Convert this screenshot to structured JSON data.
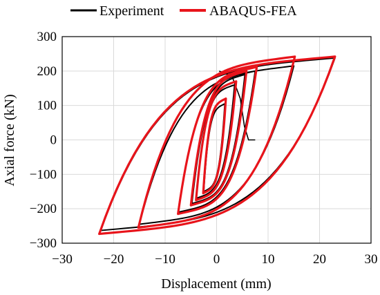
{
  "chart_data": {
    "type": "line",
    "xlabel": "Displacement (mm)",
    "ylabel": "Axial force (kN)",
    "xlim": [
      -30,
      30
    ],
    "ylim": [
      -300,
      300
    ],
    "xticks": [
      -30,
      -20,
      -10,
      0,
      10,
      20,
      30
    ],
    "yticks": [
      -300,
      -200,
      -100,
      0,
      100,
      200,
      300
    ],
    "xtick_labels": [
      "−30",
      "−20",
      "−10",
      "0",
      "10",
      "20",
      "30"
    ],
    "ytick_labels": [
      "−300",
      "−200",
      "−100",
      "0",
      "100",
      "200",
      "300"
    ],
    "grid": true,
    "legend_position": "top",
    "cycle_amplitudes_mm": [
      2,
      3,
      5,
      7,
      15,
      23
    ],
    "series": [
      {
        "name": "Experiment",
        "color": "#000000",
        "loops": [
          {
            "dmax": 1.6,
            "dmin": -2.5,
            "fmax": 105,
            "fmin": -150
          },
          {
            "dmax": 3.5,
            "dmin": -4.0,
            "fmax": 160,
            "fmin": -170
          },
          {
            "dmax": 5.5,
            "dmin": -4.8,
            "fmax": 190,
            "fmin": -185
          },
          {
            "dmax": 7.5,
            "dmin": -7.5,
            "fmax": 200,
            "fmin": -210
          },
          {
            "dmax": 15.0,
            "dmin": -15.0,
            "fmax": 215,
            "fmin": -245
          },
          {
            "dmax": 23.0,
            "dmin": -22.5,
            "fmax": 238,
            "fmin": -263
          }
        ]
      },
      {
        "name": "ABAQUS-FEA",
        "color": "#e8141b",
        "loops": [
          {
            "dmax": 1.8,
            "dmin": -2.6,
            "fmax": 120,
            "fmin": -155
          },
          {
            "dmax": 3.8,
            "dmin": -4.0,
            "fmax": 170,
            "fmin": -175
          },
          {
            "dmax": 5.8,
            "dmin": -5.0,
            "fmax": 200,
            "fmin": -190
          },
          {
            "dmax": 7.8,
            "dmin": -7.5,
            "fmax": 212,
            "fmin": -215
          },
          {
            "dmax": 15.2,
            "dmin": -15.2,
            "fmax": 242,
            "fmin": -255
          },
          {
            "dmax": 23.0,
            "dmin": -22.8,
            "fmax": 242,
            "fmin": -273
          }
        ]
      }
    ]
  }
}
